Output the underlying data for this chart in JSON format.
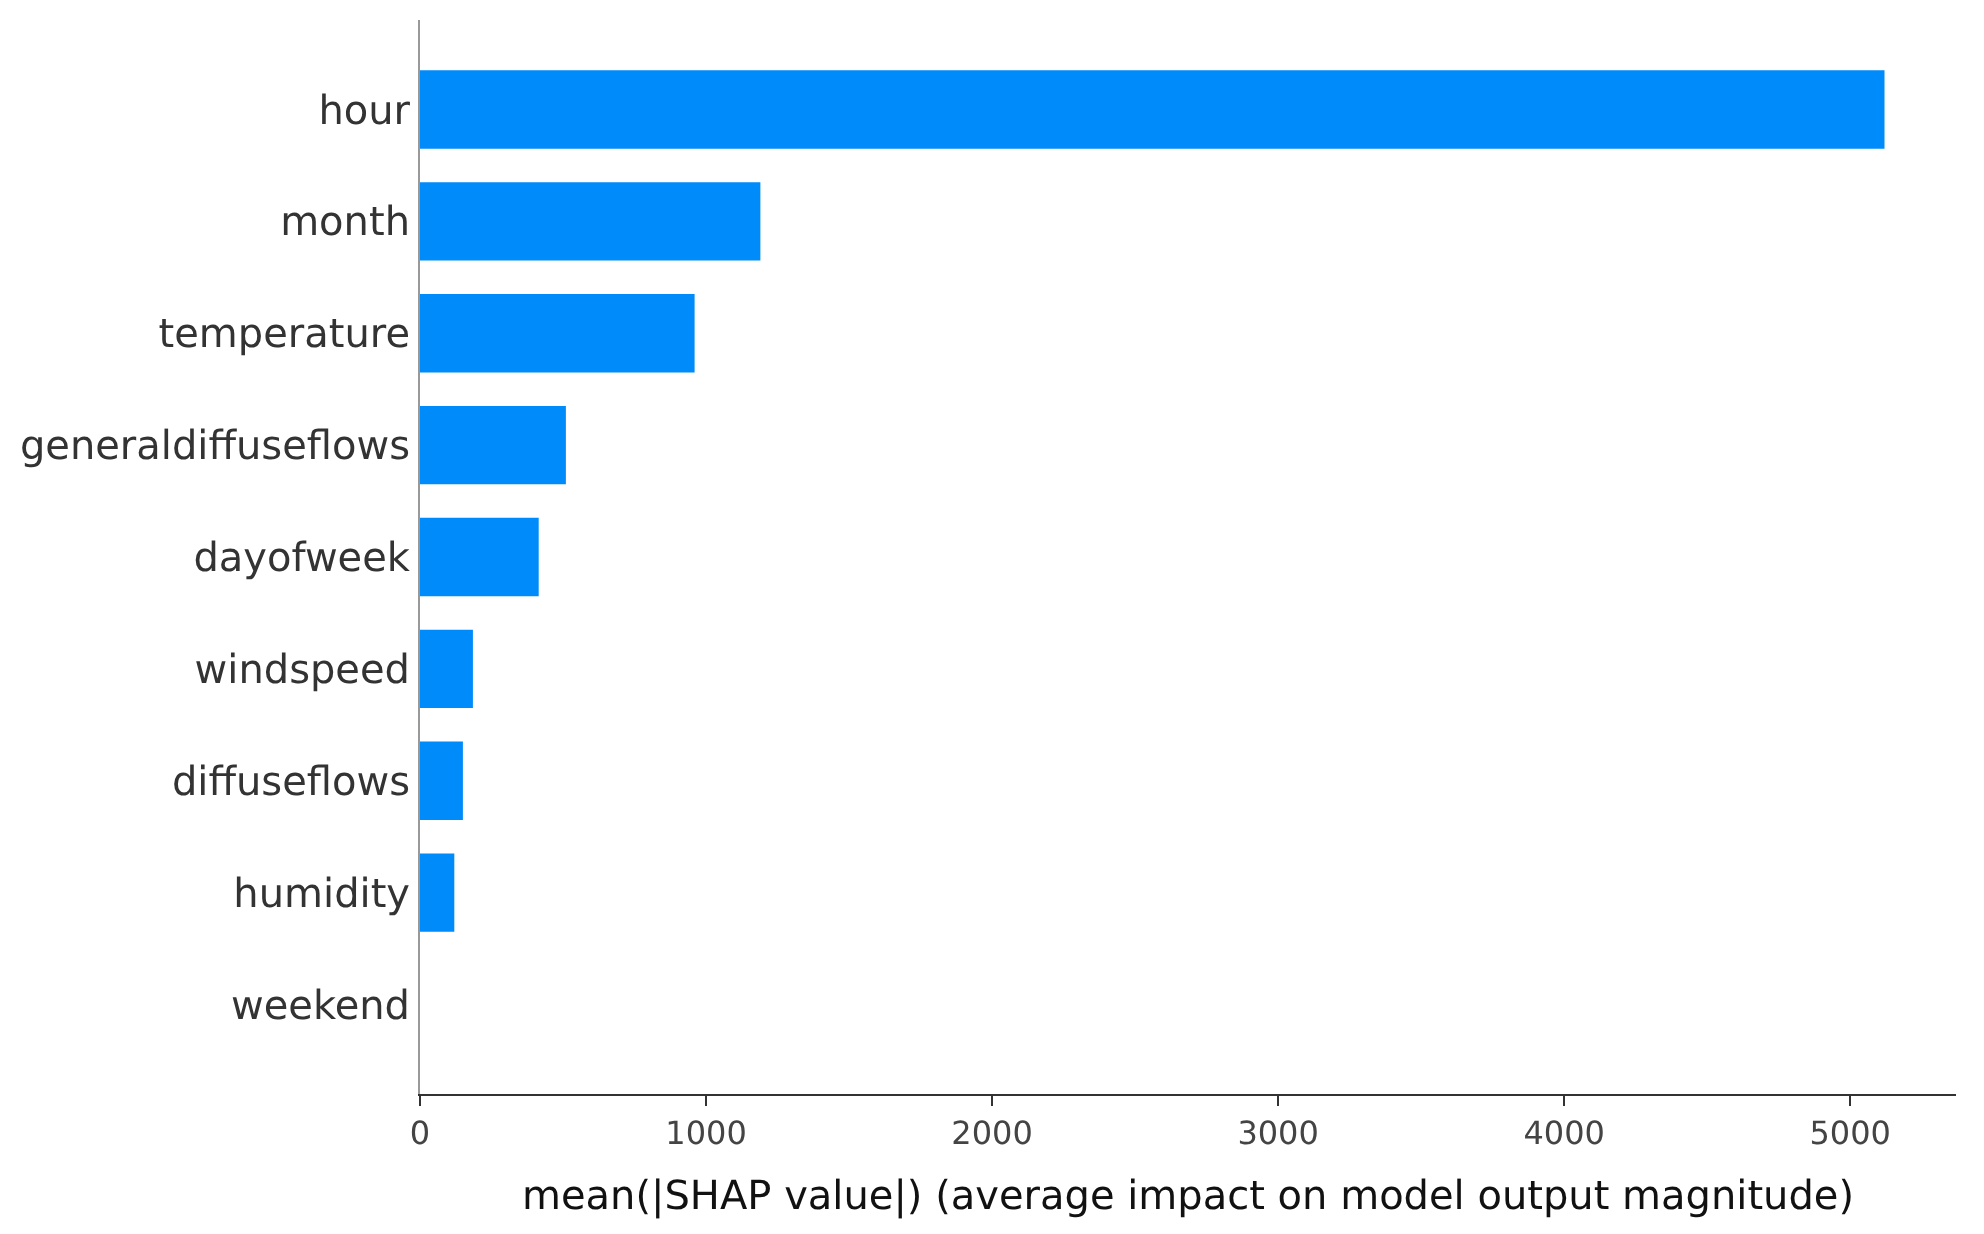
{
  "chart_data": {
    "type": "bar",
    "orientation": "horizontal",
    "xlabel": "mean(|SHAP value|) (average impact on model output magnitude)",
    "categories": [
      "hour",
      "month",
      "temperature",
      "generaldiffuseflows",
      "dayofweek",
      "windspeed",
      "diffuseflows",
      "humidity",
      "weekend"
    ],
    "values": [
      5120,
      1190,
      960,
      510,
      415,
      185,
      150,
      120,
      0
    ],
    "color": "#008bfb",
    "xlim": [
      0,
      5370
    ],
    "xticks": [
      0,
      1000,
      2000,
      3000,
      4000,
      5000
    ]
  }
}
